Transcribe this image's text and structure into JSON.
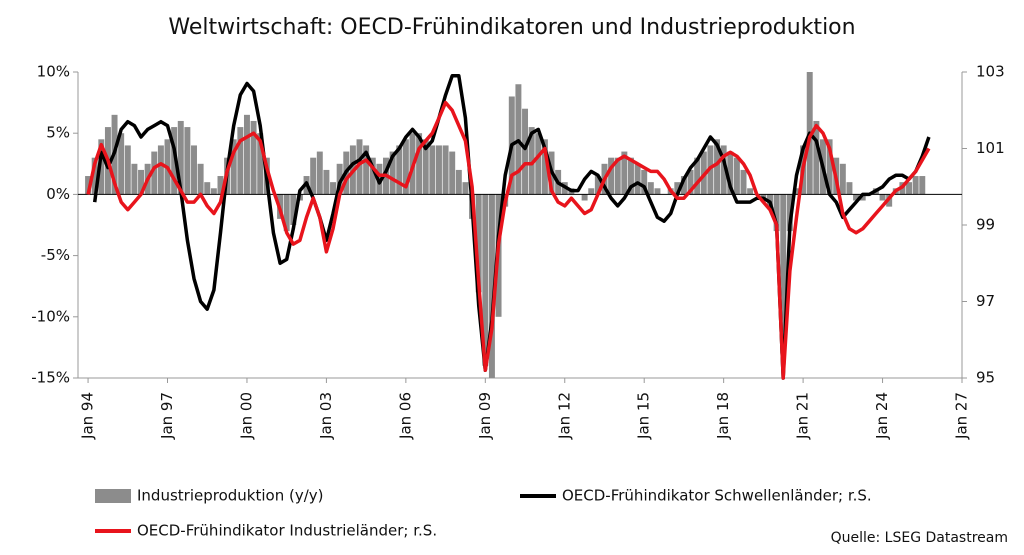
{
  "chart_data": {
    "type": "combo",
    "title": "Weltwirtschaft: OECD-Frühindikatoren und Industrieproduktion",
    "source": "Quelle:  LSEG Datastream",
    "x": [
      1994,
      1994.25,
      1994.5,
      1994.75,
      1995,
      1995.25,
      1995.5,
      1995.75,
      1996,
      1996.25,
      1996.5,
      1996.75,
      1997,
      1997.25,
      1997.5,
      1997.75,
      1998,
      1998.25,
      1998.5,
      1998.75,
      1999,
      1999.25,
      1999.5,
      1999.75,
      2000,
      2000.25,
      2000.5,
      2000.75,
      2001,
      2001.25,
      2001.5,
      2001.75,
      2002,
      2002.25,
      2002.5,
      2002.75,
      2003,
      2003.25,
      2003.5,
      2003.75,
      2004,
      2004.25,
      2004.5,
      2004.75,
      2005,
      2005.25,
      2005.5,
      2005.75,
      2006,
      2006.25,
      2006.5,
      2006.75,
      2007,
      2007.25,
      2007.5,
      2007.75,
      2008,
      2008.25,
      2008.5,
      2008.75,
      2009,
      2009.25,
      2009.5,
      2009.75,
      2010,
      2010.25,
      2010.5,
      2010.75,
      2011,
      2011.25,
      2011.5,
      2011.75,
      2012,
      2012.25,
      2012.5,
      2012.75,
      2013,
      2013.25,
      2013.5,
      2013.75,
      2014,
      2014.25,
      2014.5,
      2014.75,
      2015,
      2015.25,
      2015.5,
      2015.75,
      2016,
      2016.25,
      2016.5,
      2016.75,
      2017,
      2017.25,
      2017.5,
      2017.75,
      2018,
      2018.25,
      2018.5,
      2018.75,
      2019,
      2019.25,
      2019.5,
      2019.75,
      2020,
      2020.25,
      2020.5,
      2020.75,
      2021,
      2021.25,
      2021.5,
      2021.75,
      2022,
      2022.25,
      2022.5,
      2022.75,
      2023,
      2023.25,
      2023.5,
      2023.75,
      2024,
      2024.25,
      2024.5,
      2024.75,
      2025,
      2025.25,
      2025.5,
      2025.75
    ],
    "series": [
      {
        "name": "Industrieproduktion (y/y)",
        "type": "bar",
        "axis": "y",
        "color": "#8c8c8c",
        "values": [
          1.5,
          3,
          4.5,
          5.5,
          6.5,
          5,
          4,
          2.5,
          2,
          2.5,
          3.5,
          4,
          4.5,
          5.5,
          6,
          5.5,
          4,
          2.5,
          1,
          0.5,
          1.5,
          3,
          4.5,
          5.5,
          6.5,
          6,
          5,
          3,
          0,
          -2,
          -3,
          -2.5,
          -0.5,
          1.5,
          3,
          3.5,
          2,
          1,
          2.5,
          3.5,
          4,
          4.5,
          4,
          3,
          2.5,
          3,
          3.5,
          4,
          4.5,
          5,
          5,
          4.5,
          4,
          4,
          4,
          3.5,
          2,
          1,
          -2,
          -8,
          -14,
          -15,
          -10,
          -1,
          8,
          9,
          7,
          5.5,
          5,
          4.5,
          3.5,
          2,
          1,
          0.5,
          0,
          -0.5,
          0.5,
          1.5,
          2.5,
          3,
          3,
          3.5,
          3,
          2.5,
          2,
          1,
          0.5,
          0,
          0.5,
          1,
          1.5,
          2,
          3,
          3.5,
          4,
          4.5,
          4,
          3.5,
          3,
          2,
          0.5,
          0,
          -0.5,
          -1,
          -3,
          -13,
          -3,
          0.5,
          4,
          10,
          6,
          4.5,
          4.5,
          3,
          2.5,
          1,
          -0.5,
          -0.5,
          0,
          0.5,
          -0.5,
          -1,
          0.5,
          1,
          1,
          1.5,
          1.5,
          0
        ]
      },
      {
        "name": "OECD-Frühindikator Schwellenländer; r.S.",
        "type": "line",
        "axis": "y2",
        "color": "#000000",
        "values": [
          null,
          99.6,
          100.9,
          100.5,
          100.9,
          101.5,
          101.7,
          101.6,
          101.3,
          101.5,
          101.6,
          101.7,
          101.6,
          101.0,
          99.9,
          98.6,
          97.6,
          97.0,
          96.8,
          97.3,
          98.8,
          100.4,
          101.6,
          102.4,
          102.7,
          102.5,
          101.6,
          100.2,
          98.8,
          98.0,
          98.1,
          98.9,
          99.9,
          100.1,
          99.7,
          99.2,
          98.6,
          99.3,
          100.1,
          100.4,
          100.6,
          100.7,
          100.9,
          100.5,
          100.1,
          100.4,
          100.8,
          101.0,
          101.3,
          101.5,
          101.3,
          101.0,
          101.2,
          101.8,
          102.4,
          102.9,
          102.9,
          101.8,
          99.5,
          96.9,
          95.2,
          96.5,
          98.7,
          100.3,
          101.1,
          101.2,
          101.0,
          101.4,
          101.5,
          101.0,
          100.4,
          100.1,
          100.0,
          99.9,
          99.9,
          100.2,
          100.4,
          100.3,
          100.0,
          99.7,
          99.5,
          99.7,
          100.0,
          100.1,
          100.0,
          99.6,
          99.2,
          99.1,
          99.3,
          99.8,
          100.2,
          100.5,
          100.7,
          101.0,
          101.3,
          101.1,
          100.7,
          100.0,
          99.6,
          99.6,
          99.6,
          99.7,
          99.7,
          99.6,
          99.0,
          95.0,
          99.0,
          100.3,
          101.0,
          101.4,
          101.2,
          100.5,
          99.8,
          99.6,
          99.2,
          99.4,
          99.6,
          99.8,
          99.8,
          99.9,
          100.0,
          100.2,
          100.3,
          100.3,
          100.2,
          100.4,
          100.8,
          101.3
        ]
      },
      {
        "name": "OECD-Frühindikator Industrieländer; r.S.",
        "type": "line",
        "axis": "y2",
        "color": "#e8141c",
        "values": [
          99.8,
          100.6,
          101.1,
          100.7,
          100.1,
          99.6,
          99.4,
          99.6,
          99.8,
          100.2,
          100.5,
          100.6,
          100.5,
          100.2,
          99.9,
          99.6,
          99.6,
          99.8,
          99.5,
          99.3,
          99.6,
          100.4,
          100.9,
          101.2,
          101.3,
          101.4,
          101.2,
          100.5,
          99.9,
          99.4,
          98.8,
          98.5,
          98.6,
          99.2,
          99.7,
          99.2,
          98.3,
          98.9,
          99.8,
          100.2,
          100.4,
          100.6,
          100.7,
          100.5,
          100.3,
          100.3,
          100.2,
          100.1,
          100.0,
          100.5,
          101.0,
          101.2,
          101.4,
          101.8,
          102.2,
          102.0,
          101.6,
          101.2,
          100.0,
          97.5,
          95.2,
          96.3,
          98.5,
          99.6,
          100.3,
          100.4,
          100.6,
          100.6,
          100.8,
          101.0,
          99.9,
          99.6,
          99.5,
          99.7,
          99.5,
          99.3,
          99.4,
          99.8,
          100.2,
          100.5,
          100.7,
          100.8,
          100.7,
          100.6,
          100.5,
          100.4,
          100.4,
          100.2,
          99.9,
          99.7,
          99.7,
          99.9,
          100.1,
          100.3,
          100.5,
          100.6,
          100.8,
          100.9,
          100.8,
          100.6,
          100.3,
          99.8,
          99.6,
          99.4,
          99.0,
          95.0,
          97.8,
          99.2,
          100.5,
          101.3,
          101.6,
          101.4,
          101.0,
          100.2,
          99.3,
          98.9,
          98.8,
          98.9,
          99.1,
          99.3,
          99.5,
          99.7,
          99.9,
          100.0,
          100.2,
          100.4,
          100.7,
          101.0
        ]
      }
    ],
    "xlim": [
      1993.62,
      2027
    ],
    "xticks": [
      {
        "value": 1994,
        "label": "Jan 94"
      },
      {
        "value": 1997,
        "label": "Jan 97"
      },
      {
        "value": 2000,
        "label": "Jan 00"
      },
      {
        "value": 2003,
        "label": "Jan 03"
      },
      {
        "value": 2006,
        "label": "Jan 06"
      },
      {
        "value": 2009,
        "label": "Jan 09"
      },
      {
        "value": 2012,
        "label": "Jan 12"
      },
      {
        "value": 2015,
        "label": "Jan 15"
      },
      {
        "value": 2018,
        "label": "Jan 18"
      },
      {
        "value": 2021,
        "label": "Jan 21"
      },
      {
        "value": 2024,
        "label": "Jan 24"
      },
      {
        "value": 2027,
        "label": "Jan 27"
      }
    ],
    "ylim": [
      -15,
      10
    ],
    "yticks": [
      {
        "value": -15,
        "label": "-15%"
      },
      {
        "value": -10,
        "label": "-10%"
      },
      {
        "value": -5,
        "label": "-5%"
      },
      {
        "value": 0,
        "label": "0%"
      },
      {
        "value": 5,
        "label": "5%"
      },
      {
        "value": 10,
        "label": "10%"
      }
    ],
    "y2lim": [
      95,
      103
    ],
    "y2ticks": [
      95,
      97,
      99,
      101,
      103
    ]
  }
}
